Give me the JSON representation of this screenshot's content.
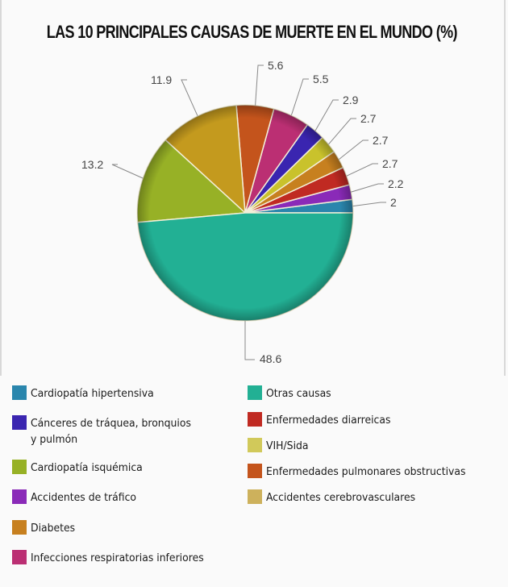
{
  "title": "LAS 10 PRINCIPALES CAUSAS DE MUERTE EN EL MUNDO (%)",
  "chart_data": {
    "type": "pie",
    "title": "LAS 10 PRINCIPALES CAUSAS DE MUERTE EN EL MUNDO (%)",
    "unit": "%",
    "slices": [
      {
        "label": "Cardiopatía hipertensiva",
        "value": 2,
        "color": "#2a86ad"
      },
      {
        "label": "Accidentes de tráfico",
        "value": 2.2,
        "color": "#8a2ab8"
      },
      {
        "label": "Enfermedades diarreicas",
        "value": 2.7,
        "color": "#c02a22"
      },
      {
        "label": "Diabetes",
        "value": 2.7,
        "color": "#c7801f"
      },
      {
        "label": "VIH/Sida",
        "value": 2.7,
        "color": "#c9c22c"
      },
      {
        "label": "Cánceres de tráquea, bronquios y pulmón",
        "value": 2.9,
        "color": "#3a25b0"
      },
      {
        "label": "Infecciones respiratorias inferiores",
        "value": 5.5,
        "color": "#bb2f73"
      },
      {
        "label": "Enfermedades pulmonares obstructivas",
        "value": 5.6,
        "color": "#c4541c"
      },
      {
        "label": "Accidentes cerebrovasculares",
        "value": 11.9,
        "color": "#c49a1e"
      },
      {
        "label": "Cardiopatía isquémica",
        "value": 13.2,
        "color": "#97b126"
      },
      {
        "label": "Otras causas",
        "value": 48.6,
        "color": "#22b094"
      }
    ],
    "data_labels": [
      "2",
      "2.2",
      "2.7",
      "2.7",
      "2.7",
      "2.9",
      "5.5",
      "5.6",
      "11.9",
      "13.2",
      "48.6"
    ],
    "legend_position": "bottom",
    "legend_columns": 2
  },
  "legend": {
    "left": [
      {
        "label": "Cardiopatía hipertensiva",
        "color": "#2a86ad"
      },
      {
        "label": "Cánceres de tráquea, bronquios\ny pulmón",
        "color": "#3a25b0"
      },
      {
        "label": "Cardiopatía isquémica",
        "color": "#97b126"
      },
      {
        "label": "Accidentes de tráfico",
        "color": "#8a2ab8"
      },
      {
        "label": "Diabetes",
        "color": "#c7801f"
      },
      {
        "label": "Infecciones respiratorias inferiores",
        "color": "#bb2f73"
      }
    ],
    "right": [
      {
        "label": "Otras causas",
        "color": "#22b094"
      },
      {
        "label": "Enfermedades diarreicas",
        "color": "#c02a22"
      },
      {
        "label": "VIH/Sida",
        "color": "#d1c95a"
      },
      {
        "label": "Enfermedades pulmonares obstructivas",
        "color": "#c4541c"
      },
      {
        "label": "Accidentes cerebrovasculares",
        "color": "#cdb15c"
      }
    ]
  }
}
